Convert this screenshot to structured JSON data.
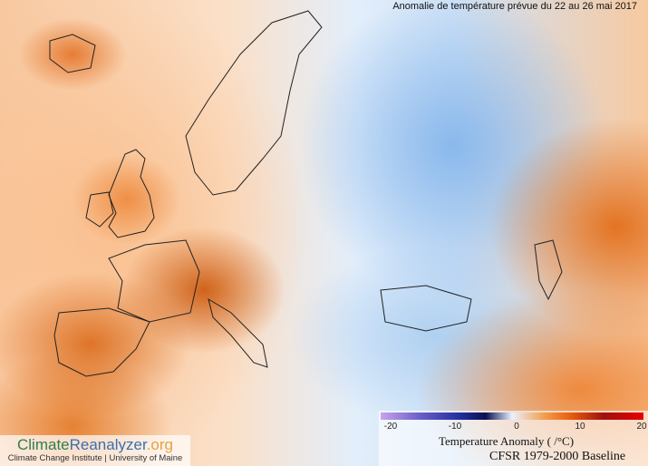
{
  "title": "Anomalie de température prévue du 22 au 26 mai 2017",
  "colorbar": {
    "ticks": [
      "-20",
      "-10",
      "0",
      "10",
      "20"
    ],
    "label": "Temperature Anomaly (   /°C)",
    "colors": [
      "#c9a3ef",
      "#2230a0",
      "#0c1050",
      "#e8f1ff",
      "#e86010",
      "#a01010",
      "#e80000"
    ]
  },
  "baseline": "CFSR 1979-2000 Baseline",
  "logo": {
    "part1": "Climate",
    "part2": "Reanalyzer",
    ".org": ".org",
    "subtitle": "Climate Change Institute | University of Maine"
  }
}
